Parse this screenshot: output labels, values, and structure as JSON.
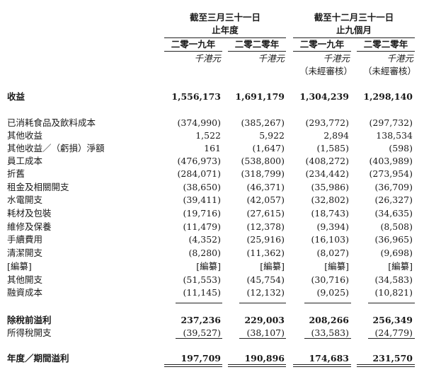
{
  "header": {
    "group1_title": "截至三月三十一日",
    "group1_sub": "止年度",
    "group2_title": "截至十二月三十一日",
    "group2_sub": "止九個月",
    "col_years": [
      "二零一九年",
      "二零二零年",
      "二零一九年",
      "二零二零年"
    ],
    "units": [
      "千港元",
      "千港元",
      "千港元",
      "千港元"
    ],
    "unaudited": [
      "",
      "",
      "（未經審核）",
      "（未經審核）"
    ]
  },
  "rows": [
    {
      "label": "收益",
      "v": [
        "1,556,173",
        "1,691,179",
        "1,304,239",
        "1,298,140"
      ],
      "bold": true
    },
    {
      "label": "已消耗食品及飲料成本",
      "v": [
        "(374,990)",
        "(385,267)",
        "(293,772)",
        "(297,732)"
      ]
    },
    {
      "label": "其他收益",
      "v": [
        "1,522",
        "5,922",
        "2,894",
        "138,534"
      ]
    },
    {
      "label": "其他收益／（虧損）淨額",
      "v": [
        "161",
        "(1,647)",
        "(1,585)",
        "(598)"
      ]
    },
    {
      "label": "員工成本",
      "v": [
        "(476,973)",
        "(538,800)",
        "(408,272)",
        "(403,989)"
      ]
    },
    {
      "label": "折舊",
      "v": [
        "(284,071)",
        "(318,799)",
        "(234,442)",
        "(273,954)"
      ]
    },
    {
      "label": "租金及相關開支",
      "v": [
        "(38,650)",
        "(46,371)",
        "(35,986)",
        "(36,709)"
      ]
    },
    {
      "label": "水電開支",
      "v": [
        "(39,411)",
        "(42,057)",
        "(32,802)",
        "(26,327)"
      ]
    },
    {
      "label": "耗材及包裝",
      "v": [
        "(19,716)",
        "(27,615)",
        "(18,743)",
        "(34,635)"
      ]
    },
    {
      "label": "維修及保養",
      "v": [
        "(11,479)",
        "(12,378)",
        "(9,394)",
        "(8,508)"
      ]
    },
    {
      "label": "手續費用",
      "v": [
        "(4,352)",
        "(25,916)",
        "(16,103)",
        "(36,965)"
      ]
    },
    {
      "label": "清潔開支",
      "v": [
        "(8,280)",
        "(11,362)",
        "(8,027)",
        "(9,698)"
      ]
    },
    {
      "label": "[編纂]",
      "v": [
        "[編纂]",
        "[編纂]",
        "[編纂]",
        "[編纂]"
      ]
    },
    {
      "label": "其他開支",
      "v": [
        "(51,553)",
        "(45,754)",
        "(30,716)",
        "(34,583)"
      ]
    },
    {
      "label": "融資成本",
      "v": [
        "(11,145)",
        "(12,132)",
        "(9,025)",
        "(10,821)"
      ]
    },
    {
      "label": "除稅前溢利",
      "v": [
        "237,236",
        "229,003",
        "208,266",
        "256,349"
      ],
      "bold": true
    },
    {
      "label": "所得稅開支",
      "v": [
        "(39,527)",
        "(38,107)",
        "(33,583)",
        "(24,779)"
      ]
    },
    {
      "label": "年度／期間溢利",
      "v": [
        "197,709",
        "190,896",
        "174,683",
        "231,570"
      ],
      "bold": true
    }
  ]
}
